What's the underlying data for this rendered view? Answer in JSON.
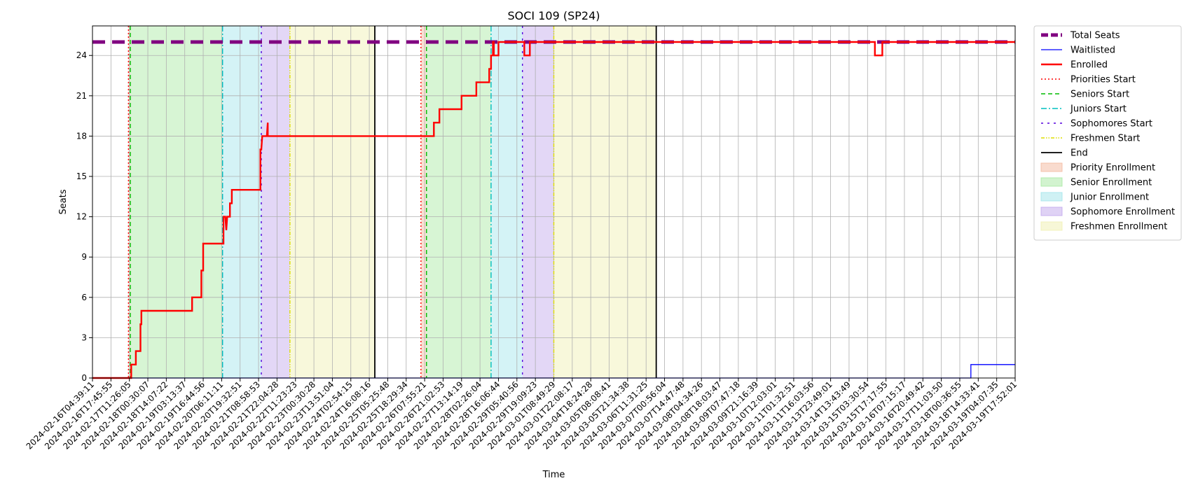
{
  "chart_data": {
    "type": "line",
    "title": "SOCI 109 (SP24)",
    "xlabel": "Time",
    "ylabel": "Seats",
    "ylim": [
      0,
      26.2
    ],
    "yticks": [
      0,
      3,
      6,
      9,
      12,
      15,
      18,
      21,
      24
    ],
    "grid": true,
    "legend_position": "outside-right",
    "x_ticks": [
      "2024-02-16T04:39:11",
      "2024-02-16T17:45:55",
      "2024-02-17T11:26:05",
      "2024-02-18T00:30:07",
      "2024-02-18T14:07:22",
      "2024-02-19T03:13:37",
      "2024-02-19T16:44:56",
      "2024-02-20T06:11:11",
      "2024-02-20T19:32:51",
      "2024-02-21T08:58:53",
      "2024-02-21T22:04:28",
      "2024-02-22T11:23:23",
      "2024-02-23T00:30:28",
      "2024-02-23T13:51:04",
      "2024-02-24T02:54:15",
      "2024-02-24T16:08:16",
      "2024-02-25T05:25:48",
      "2024-02-25T18:29:34",
      "2024-02-26T07:55:21",
      "2024-02-26T21:02:53",
      "2024-02-27T13:14:19",
      "2024-02-28T02:26:04",
      "2024-02-28T16:06:44",
      "2024-02-29T05:40:56",
      "2024-02-29T19:09:23",
      "2024-03-01T08:49:29",
      "2024-03-01T22:08:17",
      "2024-03-04T18:24:28",
      "2024-03-05T08:08:41",
      "2024-03-05T21:34:38",
      "2024-03-06T11:31:25",
      "2024-03-07T00:56:04",
      "2024-03-07T14:47:48",
      "2024-03-08T04:34:26",
      "2024-03-08T18:03:47",
      "2024-03-09T07:47:18",
      "2024-03-09T21:16:39",
      "2024-03-10T12:03:01",
      "2024-03-11T01:32:51",
      "2024-03-11T16:03:56",
      "2024-03-13T23:49:01",
      "2024-03-14T13:43:49",
      "2024-03-15T03:30:54",
      "2024-03-15T17:17:55",
      "2024-03-16T07:15:17",
      "2024-03-16T20:49:42",
      "2024-03-17T11:03:50",
      "2024-03-18T00:36:55",
      "2024-03-18T14:33:41",
      "2024-03-19T04:07:35",
      "2024-03-19T17:52:01"
    ],
    "x_max_index": 50.0,
    "series": [
      {
        "name": "Total Seats",
        "color": "#800080",
        "style": "dashed",
        "points": [
          [
            0,
            25
          ],
          [
            50,
            25
          ]
        ]
      },
      {
        "name": "Waitlisted",
        "color": "#0000ff",
        "style": "solid",
        "points": [
          [
            0,
            0
          ],
          [
            47.6,
            0
          ],
          [
            47.6,
            1
          ],
          [
            50,
            1
          ]
        ]
      },
      {
        "name": "Enrolled",
        "color": "#ff0000",
        "style": "solid",
        "points": [
          [
            0,
            0
          ],
          [
            2.1,
            0
          ],
          [
            2.1,
            1
          ],
          [
            2.35,
            1
          ],
          [
            2.35,
            2
          ],
          [
            2.6,
            2
          ],
          [
            2.6,
            4
          ],
          [
            2.65,
            4
          ],
          [
            2.65,
            5
          ],
          [
            5.4,
            5
          ],
          [
            5.4,
            6
          ],
          [
            5.9,
            6
          ],
          [
            5.9,
            8
          ],
          [
            6.0,
            8
          ],
          [
            6.0,
            10
          ],
          [
            7.1,
            10
          ],
          [
            7.1,
            12
          ],
          [
            7.2,
            12
          ],
          [
            7.25,
            11
          ],
          [
            7.3,
            12
          ],
          [
            7.45,
            12
          ],
          [
            7.45,
            13
          ],
          [
            7.55,
            13
          ],
          [
            7.55,
            14
          ],
          [
            9.1,
            14
          ],
          [
            9.1,
            17
          ],
          [
            9.15,
            17
          ],
          [
            9.2,
            18
          ],
          [
            9.45,
            18
          ],
          [
            9.5,
            19
          ],
          [
            9.5,
            18
          ],
          [
            18.5,
            18
          ],
          [
            18.5,
            19
          ],
          [
            18.8,
            19
          ],
          [
            18.8,
            20
          ],
          [
            20.0,
            20
          ],
          [
            20.0,
            21
          ],
          [
            20.8,
            21
          ],
          [
            20.8,
            22
          ],
          [
            21.5,
            22
          ],
          [
            21.5,
            23
          ],
          [
            21.6,
            23
          ],
          [
            21.6,
            24
          ],
          [
            21.7,
            24
          ],
          [
            21.7,
            25
          ],
          [
            21.75,
            25
          ],
          [
            21.75,
            24
          ],
          [
            22.0,
            24
          ],
          [
            22.0,
            25
          ],
          [
            23.4,
            25
          ],
          [
            23.4,
            24
          ],
          [
            23.7,
            24
          ],
          [
            23.7,
            25
          ],
          [
            42.4,
            25
          ],
          [
            42.4,
            24
          ],
          [
            42.8,
            24
          ],
          [
            42.8,
            25
          ],
          [
            50,
            25
          ]
        ]
      }
    ],
    "vlines": [
      {
        "name": "Priorities Start",
        "color": "#ff0000",
        "style": "dotted",
        "x": [
          1.95,
          17.8
        ]
      },
      {
        "name": "Seniors Start",
        "color": "#00bb00",
        "style": "dashed",
        "x": [
          2.05,
          18.1
        ]
      },
      {
        "name": "Juniors Start",
        "color": "#00bfbf",
        "style": "dashdot",
        "x": [
          7.05,
          21.6
        ]
      },
      {
        "name": "Sophomores Start",
        "color": "#5500dd",
        "style": "densedashdot",
        "x": [
          9.15,
          23.3
        ]
      },
      {
        "name": "Freshmen Start",
        "color": "#dddd00",
        "style": "dashdotdot",
        "x": [
          10.7,
          25.0
        ]
      },
      {
        "name": "End",
        "color": "#000000",
        "style": "solid",
        "x": [
          15.3,
          30.55
        ]
      }
    ],
    "spans": [
      {
        "name": "Priority Enrollment",
        "color": "#f4b89e",
        "ranges": [
          [
            1.95,
            2.05
          ],
          [
            17.8,
            18.1
          ]
        ]
      },
      {
        "name": "Senior Enrollment",
        "color": "#a6e8a0",
        "ranges": [
          [
            2.05,
            7.05
          ],
          [
            18.1,
            21.6
          ]
        ]
      },
      {
        "name": "Junior Enrollment",
        "color": "#9fe4ea",
        "ranges": [
          [
            7.05,
            9.15
          ],
          [
            21.6,
            23.3
          ]
        ]
      },
      {
        "name": "Sophomore Enrollment",
        "color": "#c0a6ec",
        "ranges": [
          [
            9.15,
            10.7
          ],
          [
            23.3,
            25.0
          ]
        ]
      },
      {
        "name": "Freshmen Enrollment",
        "color": "#f0f0b0",
        "ranges": [
          [
            10.7,
            15.3
          ],
          [
            25.0,
            30.55
          ]
        ]
      }
    ]
  }
}
